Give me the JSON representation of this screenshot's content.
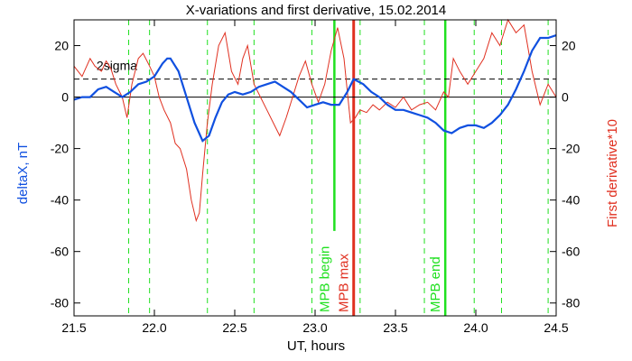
{
  "chart_data": {
    "type": "line",
    "title": "X-variations and first derivative, 15.02.2014",
    "xlabel": "UT, hours",
    "ylabel_left": "deltaX, nT",
    "ylabel_right": "First derivative*10",
    "xlim": [
      21.5,
      24.5
    ],
    "ylim": [
      -85,
      30
    ],
    "x_ticks": [
      "21.5",
      "22.0",
      "22.5",
      "23.0",
      "23.5",
      "24.0",
      "24.5"
    ],
    "y_ticks": [
      "20",
      "0",
      "-20",
      "-40",
      "-60",
      "-80"
    ],
    "y_ticks_right": [
      "20",
      "0",
      "-20",
      "-40",
      "-60",
      "-80"
    ],
    "grid": false,
    "colors": {
      "deltaX": "#1050e0",
      "derivative": "#e03020",
      "mpb_begin": "#20e020",
      "mpb_max": "#e03020",
      "mpb_end": "#20e020",
      "guides": "#20e020"
    },
    "sigma_line": {
      "label": "2sigma",
      "value": 7
    },
    "vlines_dashed": [
      21.84,
      21.97,
      22.33,
      22.62,
      22.98,
      23.28,
      23.68,
      23.99,
      24.16,
      24.45
    ],
    "markers": [
      {
        "label": "MPB begin",
        "x": 23.12
      },
      {
        "label": "MPB max",
        "x": 23.24
      },
      {
        "label": "MPB end",
        "x": 23.81
      }
    ],
    "series": [
      {
        "id": "deltaX",
        "x": [
          21.5,
          21.55,
          21.6,
          21.65,
          21.7,
          21.75,
          21.8,
          21.85,
          21.9,
          21.95,
          22.0,
          22.05,
          22.08,
          22.1,
          22.15,
          22.2,
          22.25,
          22.3,
          22.34,
          22.38,
          22.42,
          22.46,
          22.5,
          22.55,
          22.6,
          22.65,
          22.7,
          22.75,
          22.8,
          22.85,
          22.9,
          22.95,
          23.0,
          23.05,
          23.1,
          23.15,
          23.2,
          23.24,
          23.3,
          23.35,
          23.4,
          23.45,
          23.5,
          23.55,
          23.6,
          23.65,
          23.7,
          23.75,
          23.8,
          23.85,
          23.9,
          23.95,
          24.0,
          24.05,
          24.1,
          24.15,
          24.2,
          24.25,
          24.3,
          24.35,
          24.4,
          24.45,
          24.5
        ],
        "values": [
          -1,
          0,
          0,
          3,
          4,
          2,
          0,
          2,
          5,
          6,
          8,
          13,
          15,
          15,
          10,
          0,
          -10,
          -17,
          -15,
          -8,
          -2,
          1,
          2,
          1,
          2,
          4,
          5,
          6,
          4,
          2,
          -1,
          -4,
          -3,
          -2,
          -3,
          -3,
          2,
          7,
          5,
          2,
          0,
          -3,
          -5,
          -5,
          -6,
          -7,
          -8,
          -10,
          -13,
          -14,
          -12,
          -11,
          -11,
          -12,
          -10,
          -7,
          -3,
          3,
          10,
          18,
          23,
          23,
          24
        ]
      },
      {
        "id": "derivative",
        "x": [
          21.5,
          21.55,
          21.6,
          21.63,
          21.67,
          21.7,
          21.73,
          21.76,
          21.8,
          21.83,
          21.86,
          21.9,
          21.93,
          21.97,
          22.0,
          22.03,
          22.06,
          22.1,
          22.13,
          22.16,
          22.2,
          22.23,
          22.26,
          22.28,
          22.3,
          22.33,
          22.36,
          22.4,
          22.44,
          22.48,
          22.52,
          22.55,
          22.58,
          22.62,
          22.66,
          22.7,
          22.74,
          22.78,
          22.82,
          22.86,
          22.9,
          22.94,
          22.98,
          23.02,
          23.06,
          23.1,
          23.14,
          23.18,
          23.22,
          23.25,
          23.28,
          23.32,
          23.36,
          23.4,
          23.45,
          23.5,
          23.55,
          23.6,
          23.65,
          23.7,
          23.75,
          23.8,
          23.83,
          23.86,
          23.9,
          23.95,
          24.0,
          24.05,
          24.1,
          24.15,
          24.2,
          24.25,
          24.3,
          24.35,
          24.4,
          24.45,
          24.5
        ],
        "values": [
          12,
          8,
          15,
          12,
          10,
          14,
          11,
          5,
          0,
          -8,
          5,
          15,
          17,
          12,
          8,
          0,
          -5,
          -10,
          -18,
          -20,
          -28,
          -40,
          -48,
          -45,
          -30,
          -10,
          5,
          20,
          25,
          10,
          5,
          15,
          20,
          5,
          0,
          -5,
          -10,
          -15,
          -8,
          0,
          8,
          14,
          5,
          -2,
          5,
          18,
          27,
          15,
          -10,
          -8,
          -5,
          -6,
          -3,
          -5,
          -2,
          -4,
          0,
          -5,
          -3,
          -2,
          -5,
          2,
          0,
          15,
          10,
          5,
          10,
          15,
          25,
          20,
          30,
          25,
          28,
          10,
          -3,
          5,
          0
        ]
      }
    ]
  }
}
